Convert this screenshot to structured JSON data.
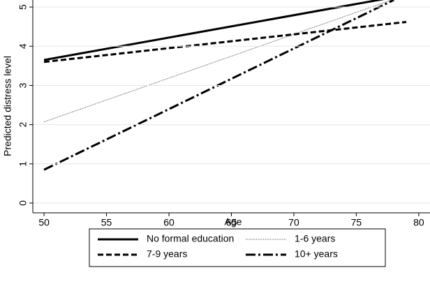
{
  "chart_data": {
    "type": "line",
    "x_label": "Age",
    "y_label": "Predicted distress level",
    "xlim": [
      49.1,
      80.9
    ],
    "xticks": [
      50,
      55,
      60,
      65,
      70,
      75,
      80
    ],
    "ylim": [
      -0.25,
      5.18
    ],
    "yticks": [
      0,
      1,
      2,
      3,
      4,
      5
    ],
    "grid": true,
    "legend": "bottom",
    "series": [
      {
        "name": "No formal education",
        "color": "#000000",
        "width": 3,
        "dash": "none",
        "x": [
          50,
          78
        ],
        "values": [
          3.65,
          5.25
        ]
      },
      {
        "name": "1-6 years",
        "color": "#333333",
        "width": 1,
        "dash": "1 1.5",
        "x": [
          50,
          78
        ],
        "values": [
          2.07,
          5.2
        ]
      },
      {
        "name": "7-9 years",
        "color": "#000000",
        "width": 3,
        "dash": "8 4",
        "x": [
          50,
          79
        ],
        "values": [
          3.6,
          4.62
        ]
      },
      {
        "name": "10+ years",
        "color": "#000000",
        "width": 3,
        "dash": "14 4 3 4",
        "x": [
          50,
          78
        ],
        "values": [
          0.85,
          5.18
        ]
      }
    ]
  }
}
